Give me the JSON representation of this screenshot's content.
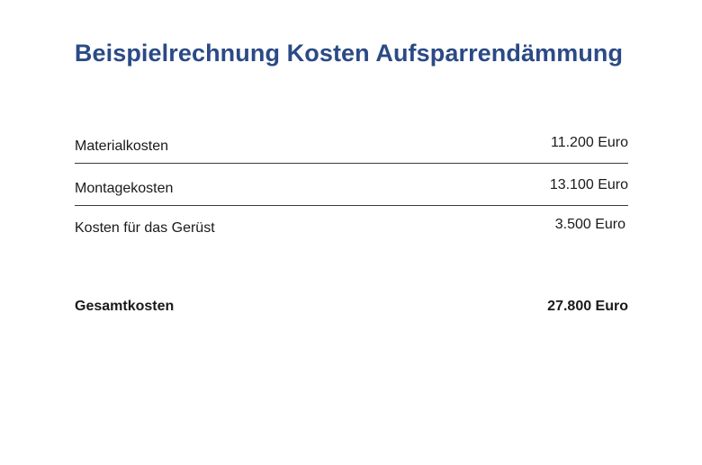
{
  "title": "Beispielrechnung Kosten Aufsparrendämmung",
  "rows": [
    {
      "label": "Materialkosten",
      "value": "11.200 Euro"
    },
    {
      "label": "Montagekosten",
      "value": "13.100 Euro"
    },
    {
      "label": "Kosten für das Gerüst",
      "value": "3.500 Euro"
    }
  ],
  "total": {
    "label": "Gesamtkosten",
    "value": "27.800 Euro"
  },
  "colors": {
    "title": "#2b4a86",
    "text": "#1a1a1a",
    "divider": "#3a3a3a"
  }
}
